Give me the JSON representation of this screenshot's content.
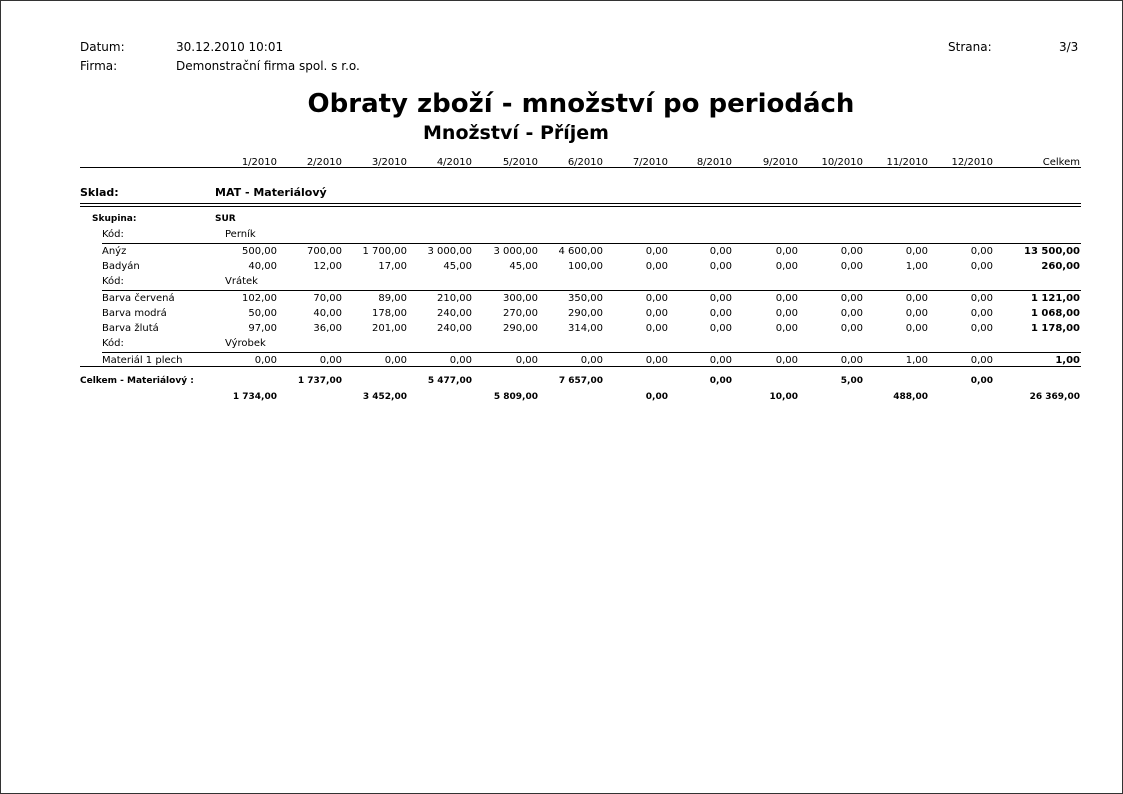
{
  "header": {
    "date_label": "Datum:",
    "date_value": "30.12.2010 10:01",
    "firm_label": "Firma:",
    "firm_value": "Demonstrační firma spol. s r.o.",
    "page_label": "Strana:",
    "page_value": "3/3"
  },
  "title": "Obraty zboží - množství po periodách",
  "subtitle": "Množství - Příjem",
  "columns": [
    "1/2010",
    "2/2010",
    "3/2010",
    "4/2010",
    "5/2010",
    "6/2010",
    "7/2010",
    "8/2010",
    "9/2010",
    "10/2010",
    "11/2010",
    "12/2010",
    "Celkem"
  ],
  "warehouse": {
    "label": "Sklad:",
    "value": "MAT - Materiálový"
  },
  "group": {
    "label": "Skupina:",
    "value": "SUR"
  },
  "code_label": "Kód:",
  "codes": [
    {
      "code": "Perník",
      "items": [
        {
          "name": "Anýz",
          "values": [
            "500,00",
            "700,00",
            "1 700,00",
            "3 000,00",
            "3 000,00",
            "4 600,00",
            "0,00",
            "0,00",
            "0,00",
            "0,00",
            "0,00",
            "0,00",
            "13 500,00"
          ]
        },
        {
          "name": "Badyán",
          "values": [
            "40,00",
            "12,00",
            "17,00",
            "45,00",
            "45,00",
            "100,00",
            "0,00",
            "0,00",
            "0,00",
            "0,00",
            "1,00",
            "0,00",
            "260,00"
          ]
        }
      ]
    },
    {
      "code": "Vrátek",
      "items": [
        {
          "name": "Barva červená",
          "values": [
            "102,00",
            "70,00",
            "89,00",
            "210,00",
            "300,00",
            "350,00",
            "0,00",
            "0,00",
            "0,00",
            "0,00",
            "0,00",
            "0,00",
            "1 121,00"
          ]
        },
        {
          "name": "Barva modrá",
          "values": [
            "50,00",
            "40,00",
            "178,00",
            "240,00",
            "270,00",
            "290,00",
            "0,00",
            "0,00",
            "0,00",
            "0,00",
            "0,00",
            "0,00",
            "1 068,00"
          ]
        },
        {
          "name": "Barva žlutá",
          "values": [
            "97,00",
            "36,00",
            "201,00",
            "240,00",
            "290,00",
            "314,00",
            "0,00",
            "0,00",
            "0,00",
            "0,00",
            "0,00",
            "0,00",
            "1 178,00"
          ]
        }
      ]
    },
    {
      "code": "Výrobek",
      "items": [
        {
          "name": "Materiál 1 plech",
          "values": [
            "0,00",
            "0,00",
            "0,00",
            "0,00",
            "0,00",
            "0,00",
            "0,00",
            "0,00",
            "0,00",
            "0,00",
            "1,00",
            "0,00",
            "1,00"
          ]
        }
      ]
    }
  ],
  "total": {
    "label": "Celkem - Materiálový :",
    "values": [
      "1 734,00",
      "1 737,00",
      "3 452,00",
      "5 477,00",
      "5 809,00",
      "7 657,00",
      "0,00",
      "0,00",
      "10,00",
      "5,00",
      "488,00",
      "0,00",
      "26 369,00"
    ]
  }
}
